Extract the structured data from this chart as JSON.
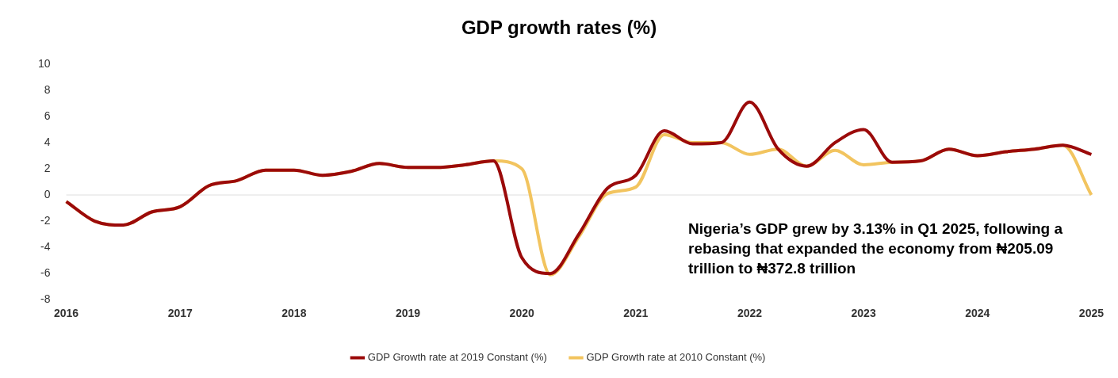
{
  "chart_data": {
    "type": "line",
    "title": "GDP growth rates (%)",
    "categories": [
      "2016",
      null,
      null,
      null,
      "2017",
      null,
      null,
      null,
      "2018",
      null,
      null,
      null,
      "2019",
      null,
      null,
      null,
      "2020",
      null,
      null,
      null,
      "2021",
      null,
      null,
      null,
      "2022",
      null,
      null,
      null,
      "2023",
      null,
      null,
      null,
      "2024",
      null,
      null,
      null,
      "2025"
    ],
    "series": [
      {
        "name": "GDP Growth rate at 2010 Constant (%)",
        "color": "#f2c45f",
        "values": [
          -0.5,
          -2.0,
          -2.3,
          -1.3,
          -0.9,
          0.7,
          1.1,
          1.9,
          1.9,
          1.5,
          1.8,
          2.4,
          2.1,
          2.1,
          2.3,
          2.6,
          2.0,
          -6.1,
          -3.2,
          0.1,
          0.6,
          4.6,
          4.0,
          4.0,
          3.1,
          3.5,
          2.2,
          3.4,
          2.3,
          2.5,
          2.6,
          3.5,
          3.0,
          3.3,
          3.5,
          3.8,
          0.0
        ]
      },
      {
        "name": "GDP Growth rate at 2019 Constant (%)",
        "color": "#9b0a0a",
        "values": [
          -0.5,
          -2.0,
          -2.3,
          -1.3,
          -0.9,
          0.7,
          1.1,
          1.9,
          1.9,
          1.5,
          1.8,
          2.4,
          2.1,
          2.1,
          2.3,
          2.6,
          -4.8,
          -6.0,
          -3.0,
          0.5,
          1.5,
          4.9,
          3.9,
          4.0,
          7.1,
          3.5,
          2.2,
          4.0,
          5.0,
          2.5,
          2.6,
          3.5,
          3.0,
          3.3,
          3.5,
          3.8,
          3.1
        ]
      }
    ],
    "ylim": [
      -8,
      10
    ],
    "yticks": [
      -8,
      -6,
      -4,
      -2,
      0,
      2,
      4,
      6,
      8,
      10
    ],
    "grid": false,
    "legend": "bottom",
    "ref_lines": [
      {
        "axis": "y",
        "value": 0,
        "color": "#dddddd"
      }
    ],
    "annotations": [
      "Nigeria’s GDP grew by 3.13% in Q1 2025, following a rebasing that expanded the economy from ₦205.09 trillion to ₦372.8 trillion"
    ]
  }
}
